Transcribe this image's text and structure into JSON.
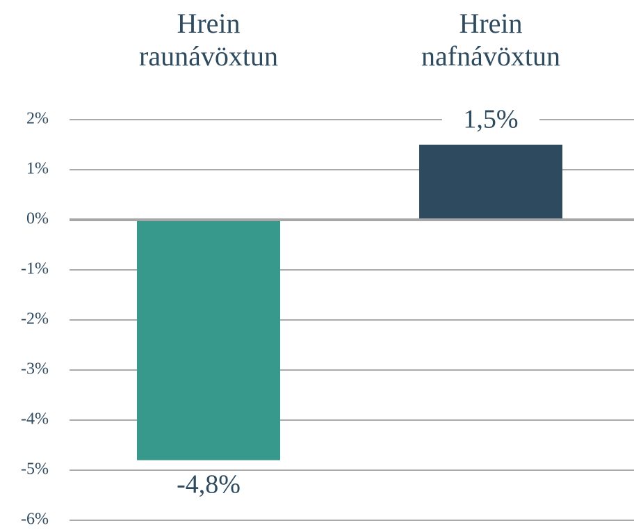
{
  "chart_data": {
    "type": "bar",
    "categories": [
      "Hrein raunávöxtun",
      "Hrein nafnávöxtun"
    ],
    "values": [
      -4.8,
      1.5
    ],
    "value_labels": [
      "-4,8%",
      "1,5%"
    ],
    "colors": [
      "#36998b",
      "#2e4a5f"
    ],
    "ylim": [
      -6,
      2
    ],
    "yticks": [
      {
        "value": 2,
        "label": "2%"
      },
      {
        "value": 1,
        "label": "1%"
      },
      {
        "value": 0,
        "label": "0%"
      },
      {
        "value": -1,
        "label": "-1%"
      },
      {
        "value": -2,
        "label": "-2%"
      },
      {
        "value": -3,
        "label": "-3%"
      },
      {
        "value": -4,
        "label": "-4%"
      },
      {
        "value": -5,
        "label": "-5%"
      },
      {
        "value": -6,
        "label": "-6%"
      }
    ],
    "grid": true
  }
}
